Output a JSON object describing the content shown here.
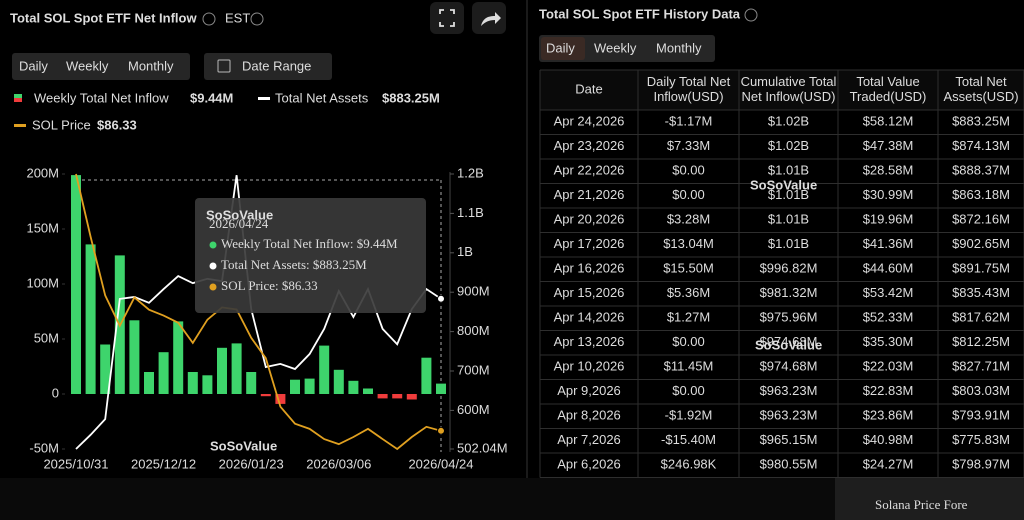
{
  "header": {
    "title": "Total SOL Spot ETF Net Inflow",
    "timezone": "EST",
    "tabs": [
      "Daily",
      "Weekly",
      "Monthly"
    ],
    "date_range": "Date Range",
    "legend_values": [
      "$9.44M",
      "$883.25M",
      "$86.33"
    ]
  },
  "chart_data": {
    "type": "combo",
    "categories": [
      "2025/10/31",
      null,
      null,
      null,
      null,
      null,
      "2025/12/12",
      null,
      null,
      null,
      null,
      null,
      "2026/01/23",
      null,
      null,
      null,
      null,
      null,
      "2026/03/06",
      null,
      null,
      null,
      null,
      null,
      null,
      "2026/04/24"
    ],
    "series": [
      {
        "name": "Weekly Total Net Inflow",
        "type": "bar",
        "axis": "y",
        "color": "#3ed46c",
        "negative_color": "#f03c3c",
        "values": [
          199000000,
          136000000,
          45000000,
          126000000,
          67000000,
          20000000,
          38000000,
          66000000,
          20000000,
          17000000,
          42000000,
          46000000,
          20000000,
          -2000000,
          -9000000,
          13000000,
          14000000,
          44000000,
          22000000,
          12000000,
          5000000,
          -4000000,
          -4000000,
          -5000000,
          33000000,
          9440000
        ]
      },
      {
        "name": "Total Net Assets",
        "type": "line",
        "axis": "y2",
        "color": "#ffffff",
        "values": [
          502040000,
          538000000,
          578000000,
          883000000,
          888000000,
          873000000,
          908000000,
          941000000,
          923000000,
          934000000,
          928000000,
          1197000000,
          857000000,
          710000000,
          718000000,
          705000000,
          743000000,
          807000000,
          903000000,
          837000000,
          908000000,
          807000000,
          768000000,
          857000000,
          908000000,
          883250000
        ]
      },
      {
        "name": "SOL Price",
        "type": "line",
        "color": "#e0a020",
        "values": [
          187,
          162.4,
          139.4,
          127.5,
          138.6,
          133.8,
          131.5,
          128.7,
          120.8,
          129.9,
          134.7,
          133.9,
          122.8,
          114.8,
          95.8,
          89.1,
          87.1,
          83.1,
          81.1,
          83.9,
          87.1,
          83.1,
          79.2,
          83.9,
          87.9,
          86.33
        ]
      }
    ],
    "ylim": [
      -50000000,
      200000000
    ],
    "yticks": [
      {
        "value": 200000000,
        "label": "200M"
      },
      {
        "value": 150000000,
        "label": "150M"
      },
      {
        "value": 100000000,
        "label": "100M"
      },
      {
        "value": 50000000,
        "label": "50M"
      },
      0,
      {
        "value": -50000000,
        "label": "-50M"
      }
    ],
    "y2lim": [
      502040000,
      1200000000
    ],
    "y2ticks": [
      {
        "value": 1200000000,
        "label": "1.2B"
      },
      {
        "value": 1100000000,
        "label": "1.1B"
      },
      {
        "value": 1000000000,
        "label": "1B"
      },
      {
        "value": 900000000,
        "label": "900M"
      },
      {
        "value": 800000000,
        "label": "800M"
      },
      {
        "value": 700000000,
        "label": "700M"
      },
      {
        "value": 600000000,
        "label": "600M"
      },
      {
        "value": 502040000,
        "label": "502.04M"
      }
    ],
    "grid": false
  },
  "tooltip": {
    "date": "2026/04/24",
    "lines": [
      "Weekly Total Net Inflow: $9.44M",
      "Total Net Assets: $883.25M",
      "SOL Price: $86.33"
    ]
  },
  "watermark": "SoSoValue",
  "table": {
    "title": "Total SOL Spot ETF History Data",
    "tabs": [
      "Daily",
      "Weekly",
      "Monthly"
    ],
    "columns": [
      [
        "Date"
      ],
      [
        "Daily Total Net",
        "Inflow(USD)"
      ],
      [
        "Cumulative Total",
        "Net Inflow(USD)"
      ],
      [
        "Total Value",
        "Traded(USD)"
      ],
      [
        "Total Net",
        "Assets(USD)"
      ]
    ],
    "rows": [
      [
        "Apr 24,2026",
        "-$1.17M",
        "$1.02B",
        "$58.12M",
        "$883.25M"
      ],
      [
        "Apr 23,2026",
        "$7.33M",
        "$1.02B",
        "$47.38M",
        "$874.13M"
      ],
      [
        "Apr 22,2026",
        "$0.00",
        "$1.01B",
        "$28.58M",
        "$888.37M"
      ],
      [
        "Apr 21,2026",
        "$0.00",
        "$1.01B",
        "$30.99M",
        "$863.18M"
      ],
      [
        "Apr 20,2026",
        "$3.28M",
        "$1.01B",
        "$19.96M",
        "$872.16M"
      ],
      [
        "Apr 17,2026",
        "$13.04M",
        "$1.01B",
        "$41.36M",
        "$902.65M"
      ],
      [
        "Apr 16,2026",
        "$15.50M",
        "$996.82M",
        "$44.60M",
        "$891.75M"
      ],
      [
        "Apr 15,2026",
        "$5.36M",
        "$981.32M",
        "$53.42M",
        "$835.43M"
      ],
      [
        "Apr 14,2026",
        "$1.27M",
        "$975.96M",
        "$52.33M",
        "$817.62M"
      ],
      [
        "Apr 13,2026",
        "$0.00",
        "$974.68M",
        "$35.30M",
        "$812.25M"
      ],
      [
        "Apr 10,2026",
        "$11.45M",
        "$974.68M",
        "$22.03M",
        "$827.71M"
      ],
      [
        "Apr 9,2026",
        "$0.00",
        "$963.23M",
        "$22.83M",
        "$803.03M"
      ],
      [
        "Apr 8,2026",
        "-$1.92M",
        "$963.23M",
        "$23.86M",
        "$793.91M"
      ],
      [
        "Apr 7,2026",
        "-$15.40M",
        "$965.15M",
        "$40.98M",
        "$775.83M"
      ],
      [
        "Apr 6,2026",
        "$246.98K",
        "$980.55M",
        "$24.27M",
        "$798.97M"
      ]
    ]
  },
  "footer": "Solana Price Fore"
}
